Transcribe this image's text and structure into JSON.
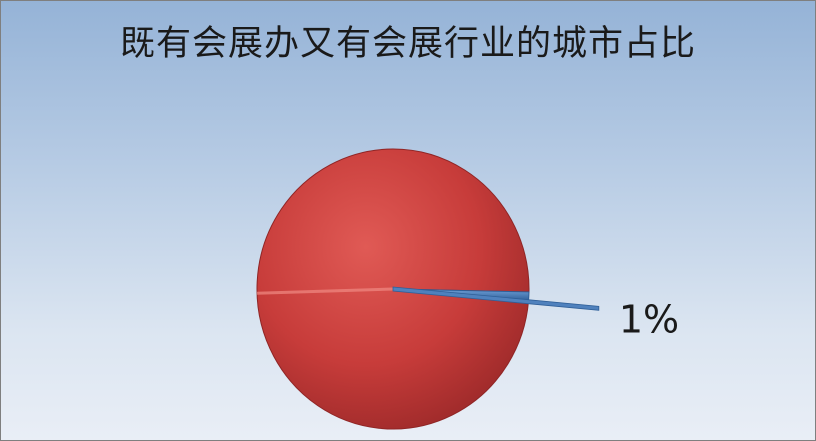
{
  "chart_data": {
    "type": "pie",
    "title": "既有会展办又有会展行业的城市占比",
    "slices": [
      {
        "value": 99,
        "color": "#c0393a",
        "label": ""
      },
      {
        "value": 1,
        "color": "#4f81bd",
        "label": "1%"
      }
    ],
    "legend": "none"
  }
}
